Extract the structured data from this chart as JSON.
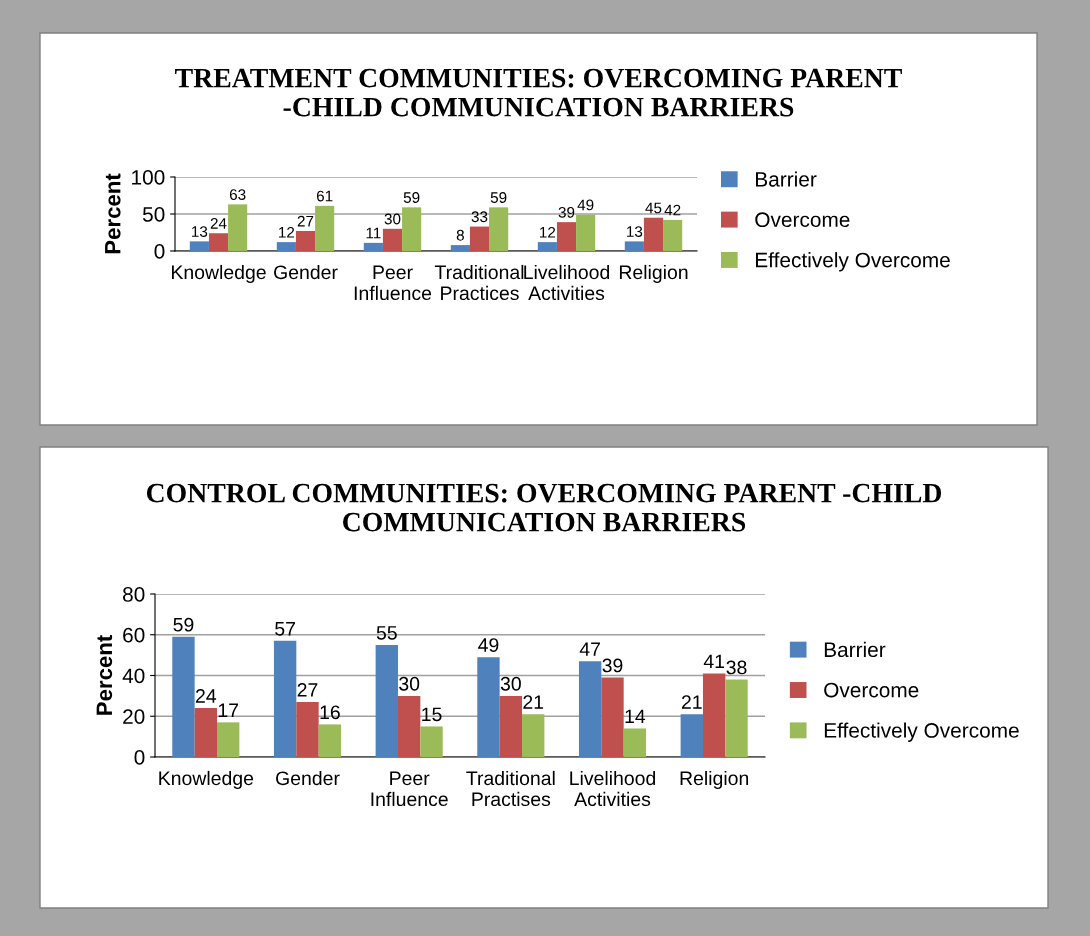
{
  "chart_data": [
    {
      "type": "bar",
      "title": "TREATMENT COMMUNITIES: OVERCOMING PARENT -CHILD COMMUNICATION BARRIERS",
      "ylabel": "Percent",
      "categories": [
        "Knowledge",
        "Gender",
        "Peer Influence",
        "Traditional Practices",
        "Livelihood Activities",
        "Religion"
      ],
      "series": [
        {
          "name": "Barrier",
          "color": "#4f81bd",
          "values": [
            13,
            12,
            11,
            8,
            12,
            13
          ]
        },
        {
          "name": "Overcome",
          "color": "#c0504d",
          "values": [
            24,
            27,
            30,
            33,
            39,
            45
          ]
        },
        {
          "name": "Effectively Overcome",
          "color": "#9bbb59",
          "values": [
            63,
            61,
            59,
            59,
            49,
            42
          ]
        }
      ],
      "ylim": [
        0,
        100
      ],
      "yticks": [
        0,
        50,
        100
      ],
      "grid": "y",
      "legend": "right",
      "data_labels": true
    },
    {
      "type": "bar",
      "title": "CONTROL COMMUNITIES: OVERCOMING PARENT -CHILD COMMUNICATION BARRIERS",
      "ylabel": "Percent",
      "categories": [
        "Knowledge",
        "Gender",
        "Peer Influence",
        "Traditional Practises",
        "Livelihood Activities",
        "Religion"
      ],
      "series": [
        {
          "name": "Barrier",
          "color": "#4f81bd",
          "values": [
            59,
            57,
            55,
            49,
            47,
            21
          ]
        },
        {
          "name": "Overcome",
          "color": "#c0504d",
          "values": [
            24,
            27,
            30,
            30,
            39,
            41
          ]
        },
        {
          "name": "Effectively Overcome",
          "color": "#9bbb59",
          "values": [
            17,
            16,
            15,
            21,
            14,
            38
          ]
        }
      ],
      "ylim": [
        0,
        80
      ],
      "yticks": [
        0,
        20,
        40,
        60,
        80
      ],
      "grid": "y",
      "legend": "right",
      "data_labels": true
    }
  ]
}
